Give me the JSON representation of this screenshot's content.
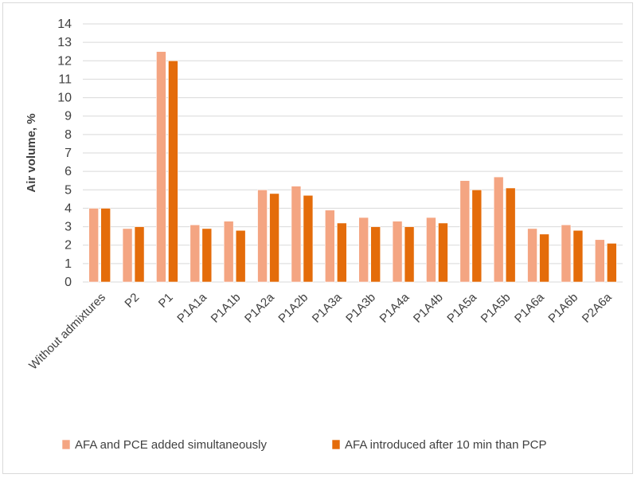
{
  "chart_data": {
    "type": "bar",
    "ylabel": "Air volume, %",
    "xlabel": "",
    "ylim": [
      0,
      14
    ],
    "ytick_step": 1,
    "grid": true,
    "legend_position": "bottom",
    "categories": [
      "Without admixtures",
      "P2",
      "P1",
      "P1A1a",
      "P1A1b",
      "P1A2a",
      "P1A2b",
      "P1A3a",
      "P1A3b",
      "P1A4a",
      "P1A4b",
      "P1A5a",
      "P1A5b",
      "P1A6a",
      "P1A6b",
      "P2A6a"
    ],
    "series": [
      {
        "name": "AFA and PCE added simultaneously",
        "color": "#f4a582",
        "values": [
          4.0,
          2.9,
          12.5,
          3.1,
          3.3,
          5.0,
          5.2,
          3.9,
          3.5,
          3.3,
          3.5,
          5.5,
          5.7,
          2.9,
          3.1,
          2.3
        ]
      },
      {
        "name": "AFA introduced after 10 min than PCP",
        "color": "#e46c0a",
        "values": [
          4.0,
          3.0,
          12.0,
          2.9,
          2.8,
          4.8,
          4.7,
          3.2,
          3.0,
          3.0,
          3.2,
          5.0,
          5.1,
          2.6,
          2.8,
          2.1
        ]
      }
    ]
  }
}
